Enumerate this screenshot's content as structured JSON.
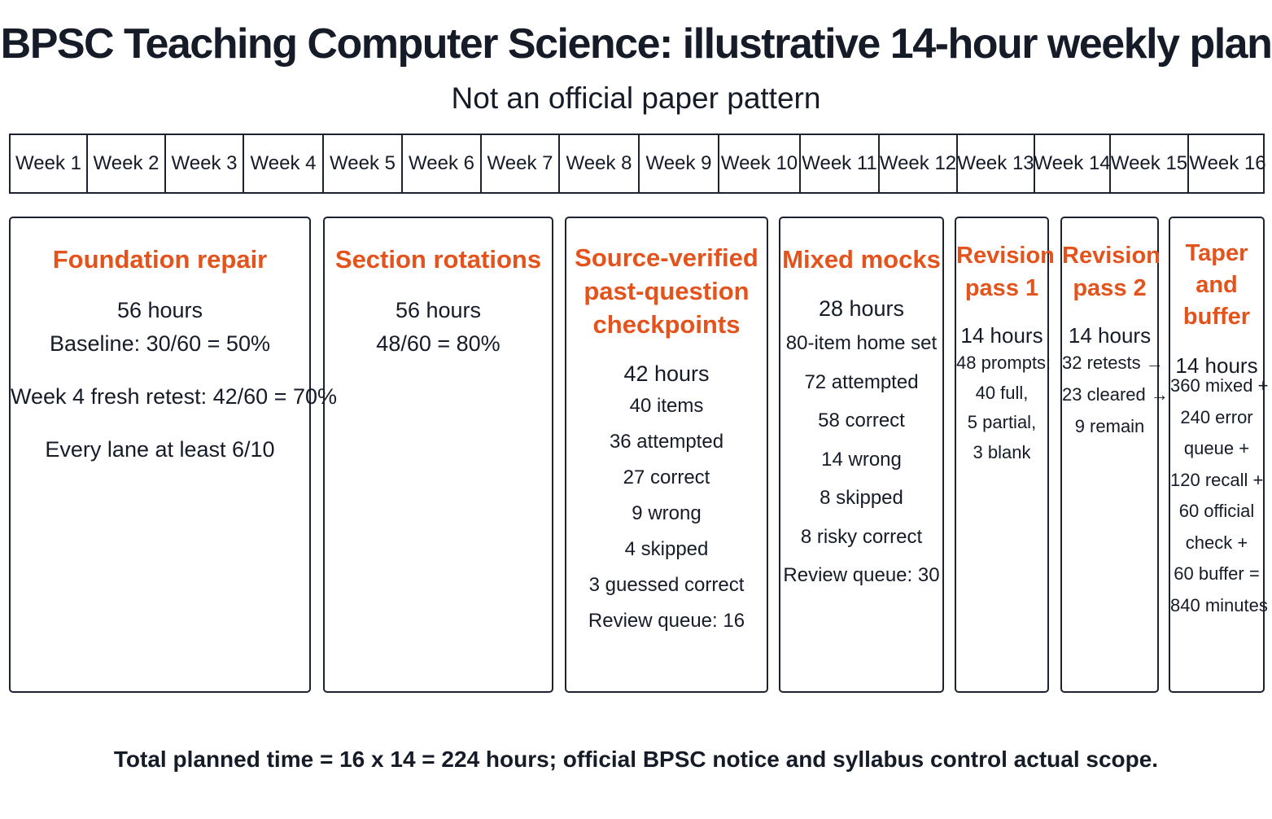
{
  "title": "BPSC Teaching Computer Science: illustrative 14-hour weekly plan",
  "subtitle": "Not an official paper pattern",
  "weeks": [
    "Week 1",
    "Week 2",
    "Week 3",
    "Week 4",
    "Week 5",
    "Week 6",
    "Week 7",
    "Week 8",
    "Week 9",
    "Week 10",
    "Week 11",
    "Week 12",
    "Week 13",
    "Week 14",
    "Week 15",
    "Week 16"
  ],
  "phases": [
    {
      "title": "Foundation repair",
      "hours": "56 hours",
      "details": [
        "Baseline: 30/60 = 50%",
        "Week 4 fresh retest: 42/60 = 70%",
        "Every lane at least 6/10"
      ]
    },
    {
      "title": "Section rotations",
      "hours": "56 hours",
      "details": [
        "48/60 = 80%"
      ]
    },
    {
      "title": "Source-verified past-question checkpoints",
      "title_lines": [
        "Source-verified",
        "past-question",
        "checkpoints"
      ],
      "hours": "42 hours",
      "details": [
        "40 items",
        "36 attempted",
        "27 correct",
        "9 wrong",
        "4 skipped",
        "3 guessed correct",
        "Review queue: 16"
      ]
    },
    {
      "title": "Mixed mocks",
      "hours": "28 hours",
      "details": [
        "80-item home set",
        "72 attempted",
        "58 correct",
        "14 wrong",
        "8 skipped",
        "8 risky correct",
        "Review queue: 30"
      ]
    },
    {
      "title": "Revision pass 1",
      "title_lines": [
        "Revision",
        "pass 1"
      ],
      "hours": "14 hours",
      "details": [
        "48 prompts:",
        "40 full,",
        "5 partial,",
        "3 blank"
      ]
    },
    {
      "title": "Revision pass 2",
      "title_lines": [
        "Revision",
        "pass 2"
      ],
      "hours": "14 hours",
      "details": [
        "32 retests →",
        "23 cleared →",
        "9 remain"
      ]
    },
    {
      "title": "Taper and buffer",
      "title_lines": [
        "Taper",
        "and",
        "buffer"
      ],
      "hours": "14 hours",
      "details": [
        "360 mixed +",
        "240 error",
        "queue +",
        "120 recall +",
        "60 official",
        "check +",
        "60 buffer =",
        "840 minutes"
      ]
    }
  ],
  "footer": "Total planned time = 16 x 14 = 224 hours; official BPSC notice and syllabus control actual scope.",
  "colors": {
    "accent": "#e4531c",
    "text": "#161b28",
    "border": "#1d2230",
    "background": "#ffffff"
  }
}
